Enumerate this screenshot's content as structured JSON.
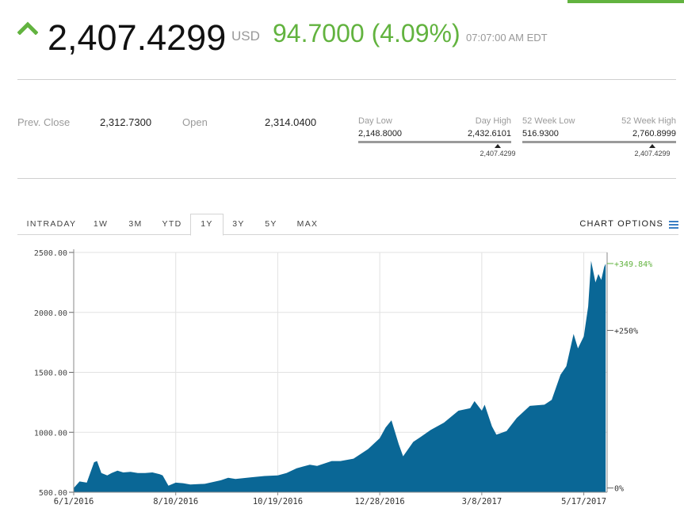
{
  "quote": {
    "price": "2,407.4299",
    "currency": "USD",
    "change": "94.7000 (4.09%)",
    "time": "07:07:00 AM EDT",
    "up_color": "#62b33f",
    "direction_icon": "up-arrow-icon"
  },
  "stats": {
    "prev_close_label": "Prev. Close",
    "prev_close_value": "2,312.7300",
    "open_label": "Open",
    "open_value": "2,314.0400",
    "day_range": {
      "low_label": "Day Low",
      "low_value": "2,148.8000",
      "high_label": "Day High",
      "high_value": "2,432.6101",
      "current": "2,407.4299",
      "current_fraction": 0.911
    },
    "week52_range": {
      "low_label": "52 Week Low",
      "low_value": "516.9300",
      "high_label": "52 Week High",
      "high_value": "2,760.8999",
      "current": "2,407.4299",
      "current_fraction": 0.843
    }
  },
  "tabs": [
    {
      "label": "INTRADAY",
      "active": false
    },
    {
      "label": "1W",
      "active": false
    },
    {
      "label": "3M",
      "active": false
    },
    {
      "label": "YTD",
      "active": false
    },
    {
      "label": "1Y",
      "active": true
    },
    {
      "label": "3Y",
      "active": false
    },
    {
      "label": "5Y",
      "active": false
    },
    {
      "label": "MAX",
      "active": false
    }
  ],
  "chart_options_label": "CHART OPTIONS",
  "chart_data": {
    "type": "area",
    "title": "",
    "xlabel": "",
    "ylabel": "",
    "ylim": [
      500,
      2500
    ],
    "y_ticks": [
      500,
      1000,
      1500,
      2000,
      2500
    ],
    "y_tick_labels": [
      "500.00",
      "1000.00",
      "1500.00",
      "2000.00",
      "2500.00"
    ],
    "x_tick_labels": [
      "6/1/2016",
      "8/10/2016",
      "10/19/2016",
      "12/28/2016",
      "3/8/2017",
      "5/17/2017"
    ],
    "x_range_days": 366,
    "x_tick_days": [
      0,
      70,
      140,
      210,
      280,
      350
    ],
    "right_axis_labels": [
      {
        "label": "+349.84%",
        "value": 2407.43,
        "highlight": true
      },
      {
        "label": "+250%",
        "value": 1850
      },
      {
        "label": "0%",
        "value": 535
      }
    ],
    "grid": true,
    "fill_color": "#0a6796",
    "highlight_color": "#62b33f",
    "series": [
      {
        "date": [
          "2016-06-01",
          "2016-06-05",
          "2016-06-10",
          "2016-06-15",
          "2016-06-17",
          "2016-06-20",
          "2016-06-24",
          "2016-06-27",
          "2016-07-01",
          "2016-07-05",
          "2016-07-10",
          "2016-07-15",
          "2016-07-20",
          "2016-07-25",
          "2016-07-30",
          "2016-08-01",
          "2016-08-05",
          "2016-08-10",
          "2016-08-15",
          "2016-08-20",
          "2016-08-30",
          "2016-09-10",
          "2016-09-15",
          "2016-09-20",
          "2016-10-01",
          "2016-10-10",
          "2016-10-19",
          "2016-10-25",
          "2016-11-01",
          "2016-11-10",
          "2016-11-15",
          "2016-11-25",
          "2016-12-01",
          "2016-12-10",
          "2016-12-20",
          "2016-12-28",
          "2017-01-01",
          "2017-01-05",
          "2017-01-10",
          "2017-01-13",
          "2017-01-20",
          "2017-01-25",
          "2017-02-01",
          "2017-02-10",
          "2017-02-20",
          "2017-02-28",
          "2017-03-03",
          "2017-03-08",
          "2017-03-10",
          "2017-03-15",
          "2017-03-18",
          "2017-03-25",
          "2017-04-01",
          "2017-04-10",
          "2017-04-20",
          "2017-04-25",
          "2017-05-01",
          "2017-05-05",
          "2017-05-10",
          "2017-05-13",
          "2017-05-17",
          "2017-05-20",
          "2017-05-22",
          "2017-05-25",
          "2017-05-27",
          "2017-05-29",
          "2017-05-31",
          "2017-06-01"
        ],
        "values": [
          535,
          590,
          580,
          750,
          760,
          660,
          640,
          660,
          680,
          665,
          670,
          660,
          660,
          665,
          650,
          640,
          555,
          580,
          575,
          565,
          570,
          600,
          620,
          610,
          625,
          635,
          640,
          660,
          700,
          730,
          720,
          760,
          760,
          780,
          860,
          950,
          1040,
          1100,
          900,
          800,
          920,
          960,
          1020,
          1080,
          1180,
          1200,
          1260,
          1180,
          1230,
          1050,
          980,
          1010,
          1120,
          1220,
          1230,
          1270,
          1480,
          1550,
          1820,
          1700,
          1800,
          2050,
          2430,
          2250,
          2320,
          2270,
          2380,
          2407
        ]
      }
    ]
  }
}
